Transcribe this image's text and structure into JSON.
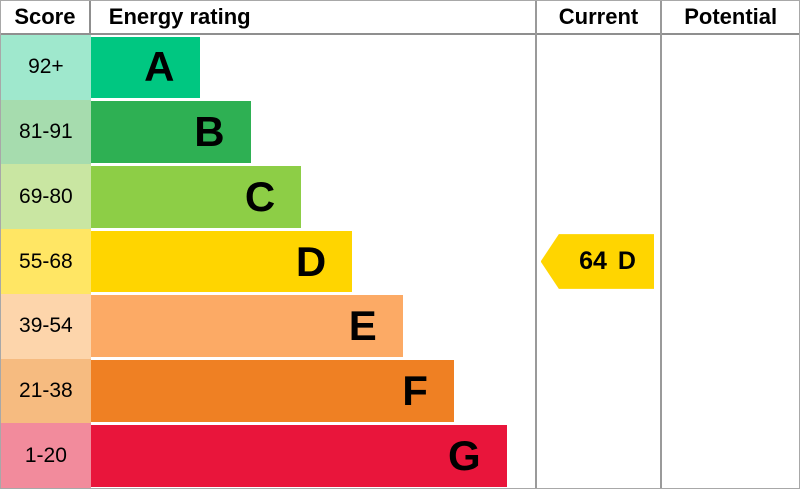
{
  "header": {
    "score": "Score",
    "energy_rating": "Energy rating",
    "current": "Current",
    "potential": "Potential"
  },
  "bands": [
    {
      "score": "92+",
      "letter": "A",
      "color": "#00c781",
      "tint": "#9fe8cd",
      "width_pct": 24.7
    },
    {
      "score": "81-91",
      "letter": "B",
      "color": "#2eb053",
      "tint": "#a6dcae",
      "width_pct": 36.0
    },
    {
      "score": "69-80",
      "letter": "C",
      "color": "#8dce46",
      "tint": "#c9e6a2",
      "width_pct": 47.4
    },
    {
      "score": "55-68",
      "letter": "D",
      "color": "#ffd500",
      "tint": "#ffe664",
      "width_pct": 58.9
    },
    {
      "score": "39-54",
      "letter": "E",
      "color": "#fcaa65",
      "tint": "#fdd5ab",
      "width_pct": 70.3
    },
    {
      "score": "21-38",
      "letter": "F",
      "color": "#ef8023",
      "tint": "#f6bb80",
      "width_pct": 81.8
    },
    {
      "score": "1-20",
      "letter": "G",
      "color": "#e9153b",
      "tint": "#f28b9c",
      "width_pct": 93.7
    }
  ],
  "current": {
    "value": "64",
    "letter": "D",
    "color": "#ffd500"
  },
  "chart_data": {
    "type": "bar",
    "title": "Energy rating",
    "categories": [
      "A",
      "B",
      "C",
      "D",
      "E",
      "F",
      "G"
    ],
    "score_ranges": [
      "92+",
      "81-91",
      "69-80",
      "55-68",
      "39-54",
      "21-38",
      "1-20"
    ],
    "bar_lengths_pct": [
      24.7,
      36.0,
      47.4,
      58.9,
      70.3,
      81.8,
      93.7
    ],
    "colors": [
      "#00c781",
      "#2eb053",
      "#8dce46",
      "#ffd500",
      "#fcaa65",
      "#ef8023",
      "#e9153b"
    ],
    "current": {
      "score": 64,
      "rating": "D"
    },
    "potential": null,
    "legend_position": "none",
    "grid": false
  }
}
